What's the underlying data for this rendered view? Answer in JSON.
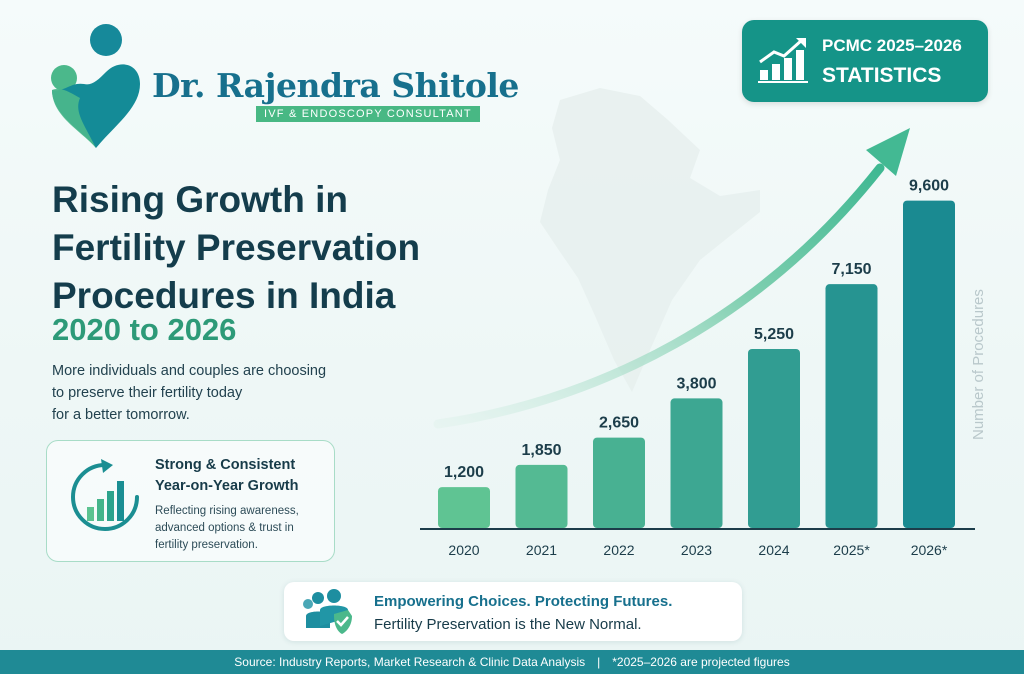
{
  "brand": {
    "name": "Dr. Rajendra Shitole",
    "subtitle": "IVF & ENDOSCOPY CONSULTANT"
  },
  "headline": {
    "lines": [
      "Rising Growth in",
      "Fertility Preservation",
      "Procedures in India"
    ],
    "year_range": "2020 to 2026"
  },
  "description": {
    "lines": [
      "More individuals and couples are choosing",
      "to preserve their fertility today",
      "for a better tomorrow."
    ]
  },
  "growth_card": {
    "title_lines": [
      "Strong & Consistent",
      "Year-on-Year Growth"
    ],
    "text_lines": [
      "Reflecting rising awareness,",
      "advanced options & trust in",
      "fertility preservation."
    ]
  },
  "badge": {
    "line1": "PCMC 2025–2026",
    "line2": "STATISTICS"
  },
  "tagline": {
    "line1": "Empowering Choices. Protecting Futures.",
    "line2": "Fertility Preservation is the New Normal."
  },
  "footer": {
    "source": "Source: Industry Reports, Market Research & Clinic Data Analysis",
    "separator": "|",
    "note": "*2025–2026 are projected figures"
  },
  "colors": {
    "teal_dark": "#1a8a91",
    "green_light": "#5fc493",
    "brand_blue": "#17708d",
    "accent_green": "#48b884"
  },
  "chart_data": {
    "type": "bar",
    "categories": [
      "2020",
      "2021",
      "2022",
      "2023",
      "2024",
      "2025*",
      "2026*"
    ],
    "values": [
      1200,
      1850,
      2650,
      3800,
      5250,
      7150,
      9600
    ],
    "value_labels": [
      "1,200",
      "1,850",
      "2,650",
      "3,800",
      "5,250",
      "7,150",
      "9,600"
    ],
    "ylabel": "Number of Procedures",
    "ylim": [
      0,
      10000
    ],
    "grid": false,
    "trend_arrow": true
  }
}
